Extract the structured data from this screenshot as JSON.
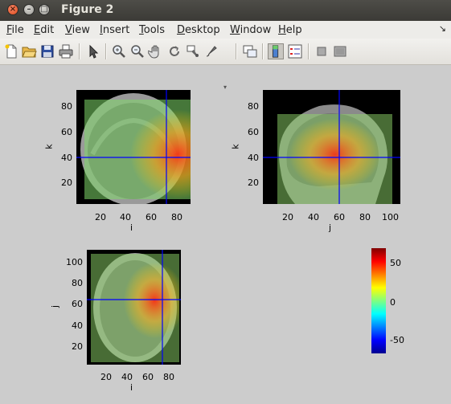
{
  "window": {
    "title": "Figure 2"
  },
  "menubar": {
    "items": [
      {
        "label": "File",
        "key": "F",
        "rest": "ile"
      },
      {
        "label": "Edit",
        "key": "E",
        "rest": "dit"
      },
      {
        "label": "View",
        "key": "V",
        "rest": "iew"
      },
      {
        "label": "Insert",
        "key": "I",
        "rest": "nsert"
      },
      {
        "label": "Tools",
        "key": "T",
        "rest": "ools"
      },
      {
        "label": "Desktop",
        "key": "D",
        "rest": "esktop"
      },
      {
        "label": "Window",
        "key": "W",
        "rest": "indow"
      },
      {
        "label": "Help",
        "key": "H",
        "rest": "elp"
      }
    ],
    "dock_glyph": "↘"
  },
  "toolbar": {
    "buttons": [
      "new-figure",
      "open-file",
      "save-figure",
      "print-figure",
      "edit-plot",
      "zoom-in",
      "zoom-out",
      "pan",
      "rotate-3d",
      "data-cursor",
      "brush",
      "link-plot",
      "colorbar",
      "legend",
      "hide-plot-tools",
      "show-plot-tools"
    ]
  },
  "coronal": {
    "xticks": [
      "20",
      "40",
      "60",
      "80"
    ],
    "yticks": [
      "80",
      "60",
      "40",
      "20"
    ],
    "xlabel": "i",
    "ylabel": "k"
  },
  "sagittal": {
    "xticks": [
      "20",
      "40",
      "60",
      "80",
      "100"
    ],
    "yticks": [
      "80",
      "60",
      "40",
      "20"
    ],
    "xlabel": "j",
    "ylabel": "k"
  },
  "axial": {
    "xticks": [
      "20",
      "40",
      "60",
      "80"
    ],
    "yticks": [
      "100",
      "80",
      "60",
      "40",
      "20"
    ],
    "xlabel": "i",
    "ylabel": "j"
  },
  "colorbar": {
    "ticks": [
      "50",
      "0",
      "-50"
    ],
    "colors": [
      "#800000",
      "#ff0000",
      "#ffff00",
      "#80ff80",
      "#00ffff",
      "#0000ff",
      "#000090"
    ]
  }
}
